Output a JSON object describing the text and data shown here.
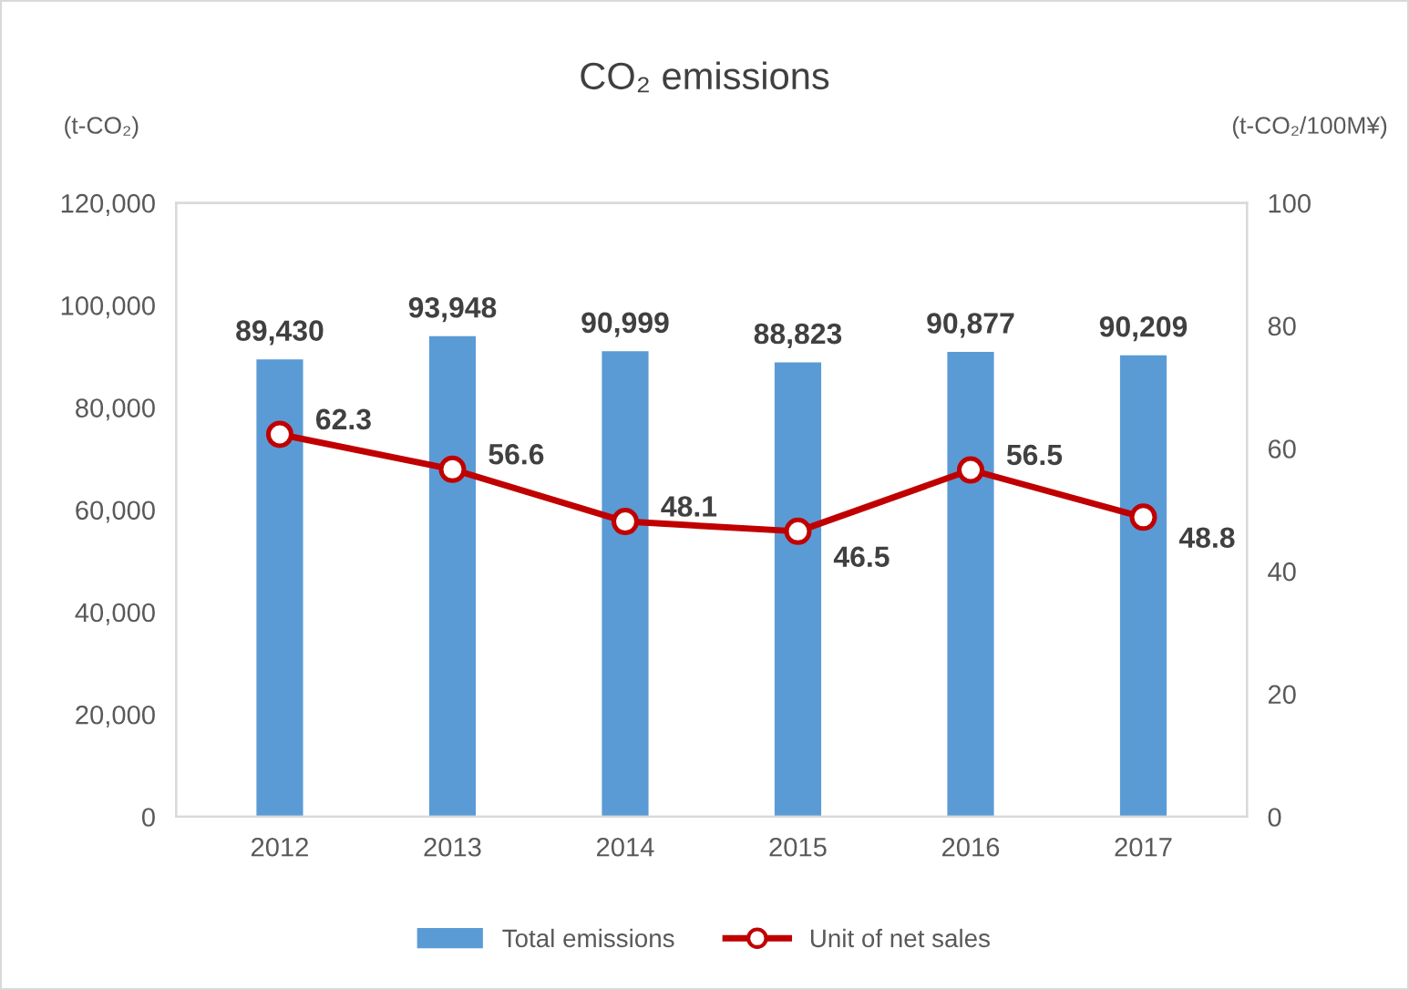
{
  "chart_data": {
    "type": "bar",
    "title": "CO₂ emissions",
    "ylabel": "(t-CO₂)",
    "y2label": "(t-CO₂/100M¥)",
    "categories": [
      "2012",
      "2013",
      "2014",
      "2015",
      "2016",
      "2017"
    ],
    "series": [
      {
        "name": "Total emissions",
        "color": "#5b9bd5",
        "values": [
          89430,
          93948,
          90999,
          88823,
          90877,
          90209
        ],
        "value_labels": [
          "89,430",
          "93,948",
          "90,999",
          "88,823",
          "90,877",
          "90,209"
        ]
      },
      {
        "name": "Unit of net sales",
        "type": "line",
        "axis": "y2",
        "color": "#c00000",
        "marker": "circle",
        "values": [
          62.3,
          56.6,
          48.1,
          46.5,
          56.5,
          48.8
        ],
        "value_labels": [
          "62.3",
          "56.6",
          "48.1",
          "46.5",
          "56.5",
          "48.8"
        ]
      }
    ],
    "ylim": [
      0,
      120000
    ],
    "yticks": [
      0,
      {
        "value": 20000,
        "label": "20,000"
      },
      {
        "value": 40000,
        "label": "40,000"
      },
      {
        "value": 60000,
        "label": "60,000"
      },
      {
        "value": 80000,
        "label": "80,000"
      },
      {
        "value": 100000,
        "label": "100,000"
      },
      {
        "value": 120000,
        "label": "120,000"
      }
    ],
    "y2lim": [
      0,
      100
    ],
    "y2ticks": [
      0,
      20,
      40,
      60,
      80,
      100
    ],
    "grid": false,
    "legend": "bottom"
  }
}
